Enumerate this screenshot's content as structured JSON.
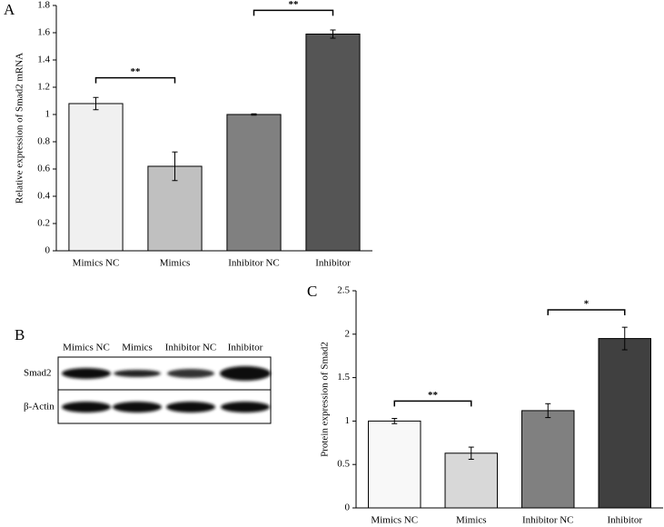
{
  "chart_data": [
    {
      "type": "bar",
      "panel": "A",
      "y_label": "Relative expression of Smad2 mRNA",
      "categories": [
        "Mimics NC",
        "Mimics",
        "Inhibitor NC",
        "Inhibitor"
      ],
      "values": [
        1.08,
        0.62,
        1.0,
        1.59
      ],
      "errors": [
        0.045,
        0.105,
        0.005,
        0.03
      ],
      "colors": [
        "#f0f0f0",
        "#c0c0c0",
        "#808080",
        "#555555"
      ],
      "ylim": [
        0,
        1.8
      ],
      "yticks": [
        0,
        0.2,
        0.4,
        0.6,
        0.8,
        1,
        1.2,
        1.4,
        1.6,
        1.8
      ],
      "significance": [
        {
          "label": "**",
          "between": [
            "Mimics NC",
            "Mimics"
          ]
        },
        {
          "label": "**",
          "between": [
            "Inhibitor NC",
            "Inhibitor"
          ]
        }
      ]
    },
    {
      "type": "bar",
      "panel": "C",
      "y_label": "Protein expression of Smad2",
      "categories": [
        "Mimics NC",
        "Mimics",
        "Inhibitor NC",
        "Inhibitor"
      ],
      "values": [
        1.0,
        0.63,
        1.12,
        1.95
      ],
      "errors": [
        0.03,
        0.07,
        0.08,
        0.13
      ],
      "colors": [
        "#f8f8f8",
        "#d8d8d8",
        "#808080",
        "#404040"
      ],
      "ylim": [
        0,
        2.5
      ],
      "yticks": [
        0,
        0.5,
        1,
        1.5,
        2,
        2.5
      ],
      "significance": [
        {
          "label": "**",
          "between": [
            "Mimics NC",
            "Mimics"
          ]
        },
        {
          "label": "*",
          "between": [
            "Inhibitor NC",
            "Inhibitor"
          ]
        }
      ]
    }
  ],
  "blot": {
    "panel": "B",
    "lanes": [
      "Mimics NC",
      "Mimics",
      "Inhibitor NC",
      "Inhibitor"
    ],
    "rows": [
      "Smad2",
      "β-Actin"
    ]
  }
}
